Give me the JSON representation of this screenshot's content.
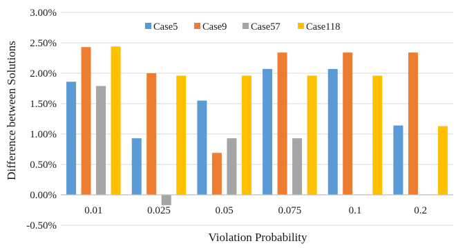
{
  "chart_data": {
    "type": "bar",
    "categories": [
      "0.01",
      "0.025",
      "0.05",
      "0.075",
      "0.1",
      "0.2"
    ],
    "series": [
      {
        "name": "Case5",
        "color": "#5B9BD5",
        "values": [
          1.86,
          0.93,
          1.55,
          2.07,
          2.07,
          1.14
        ]
      },
      {
        "name": "Case9",
        "color": "#ED7D31",
        "values": [
          2.43,
          2.0,
          0.69,
          2.34,
          2.34,
          2.34
        ]
      },
      {
        "name": "Case57",
        "color": "#A5A5A5",
        "values": [
          1.79,
          -0.17,
          0.93,
          0.93,
          null,
          null
        ]
      },
      {
        "name": "Case118",
        "color": "#FFC000",
        "values": [
          2.44,
          1.96,
          1.96,
          1.96,
          1.96,
          1.13
        ]
      }
    ],
    "y_ticks": [
      "3.00%",
      "2.50%",
      "2.00%",
      "1.50%",
      "1.00%",
      "0.50%",
      "0.00%",
      "-0.50%"
    ],
    "ylim": [
      -0.5,
      3.0
    ],
    "xlabel": "Violation Probability",
    "ylabel": "Difference between Solutions",
    "legend_position": "top",
    "grid": true
  }
}
